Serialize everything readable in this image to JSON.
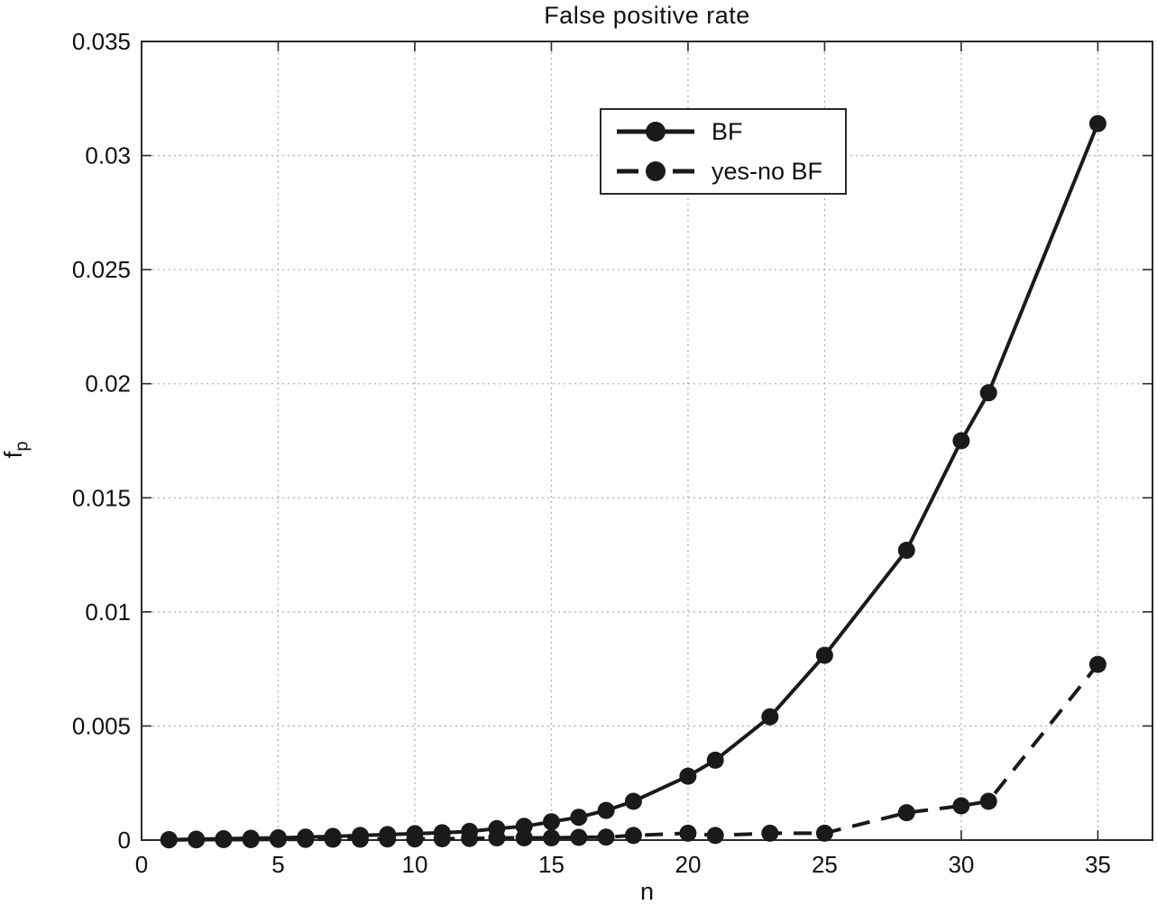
{
  "title": "False positive rate",
  "ylabel": {
    "base": "f",
    "sub": "p"
  },
  "colors": {
    "line": "#1a1a1a",
    "marker": "#1a1a1a",
    "grid": "#b0b0b0",
    "axis": "#2a2a2a",
    "background": "#ffffff",
    "text": "#111111"
  },
  "legend": {
    "position": "upper-center-inside",
    "entries": [
      "BF",
      "yes-no BF"
    ]
  },
  "chart_data": {
    "type": "line",
    "title": "False positive rate",
    "xlabel": "n",
    "ylabel": "f_p",
    "xlim": [
      0,
      37
    ],
    "ylim": [
      0,
      0.035
    ],
    "xticks": [
      0,
      5,
      10,
      15,
      20,
      25,
      30,
      35
    ],
    "yticks": [
      0,
      0.005,
      0.01,
      0.015,
      0.02,
      0.025,
      0.03,
      0.035
    ],
    "grid": true,
    "x": [
      1,
      2,
      3,
      4,
      5,
      6,
      7,
      8,
      9,
      10,
      11,
      12,
      13,
      14,
      15,
      16,
      17,
      18,
      20,
      21,
      23,
      25,
      28,
      30,
      31,
      35
    ],
    "series": [
      {
        "name": "BF",
        "style": "solid",
        "marker": "circle",
        "values": [
          2e-05,
          4e-05,
          6e-05,
          8e-05,
          0.0001,
          0.00013,
          0.00016,
          0.0002,
          0.00024,
          0.00028,
          0.00032,
          0.00038,
          0.0005,
          0.0006,
          0.0008,
          0.001,
          0.0013,
          0.0017,
          0.0028,
          0.0035,
          0.0054,
          0.0081,
          0.0127,
          0.0175,
          0.0196,
          0.0314
        ]
      },
      {
        "name": "yes-no BF",
        "style": "dashed",
        "marker": "circle",
        "values": [
          1e-05,
          1e-05,
          2e-05,
          2e-05,
          3e-05,
          3e-05,
          4e-05,
          4e-05,
          5e-05,
          5e-05,
          6e-05,
          7e-05,
          0.0001,
          0.0001,
          0.0001,
          0.00012,
          0.00013,
          0.0002,
          0.0003,
          0.0002,
          0.0003,
          0.0003,
          0.0012,
          0.0015,
          0.0017,
          0.0077
        ]
      }
    ]
  }
}
